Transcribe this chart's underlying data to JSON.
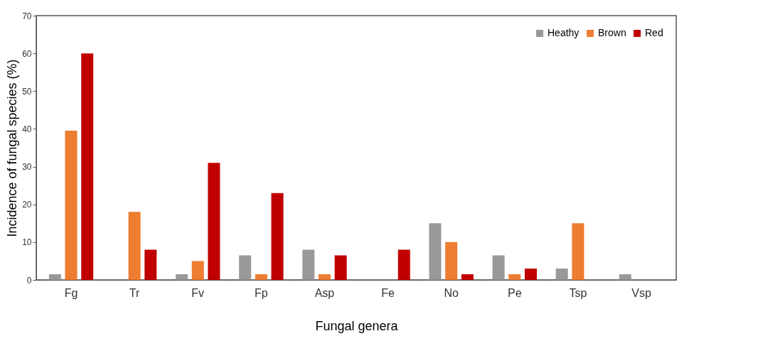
{
  "chart_data": {
    "type": "bar",
    "xlabel": "Fungal genera",
    "ylabel": "Incidence of fungal species (%)",
    "categories": [
      "Fg",
      "Tr",
      "Fv",
      "Fp",
      "Asp",
      "Fe",
      "No",
      "Pe",
      "Tsp",
      "Vsp"
    ],
    "series": [
      {
        "name": "Heathy",
        "color": "#999999",
        "values": [
          1.5,
          0,
          1.5,
          6.5,
          8,
          0,
          15,
          6.5,
          3,
          1.5
        ]
      },
      {
        "name": "Brown",
        "color": "#ed7d31",
        "values": [
          39.5,
          18,
          5,
          1.5,
          1.5,
          0,
          10,
          1.5,
          15,
          0
        ]
      },
      {
        "name": "Red",
        "color": "#c00000",
        "values": [
          60,
          8,
          31,
          23,
          6.5,
          8,
          1.5,
          3,
          0,
          0
        ]
      }
    ],
    "ylim": [
      0,
      70
    ],
    "yticks": [
      0,
      10,
      20,
      30,
      40,
      50,
      60,
      70
    ],
    "grid": false,
    "legend": "top right"
  }
}
